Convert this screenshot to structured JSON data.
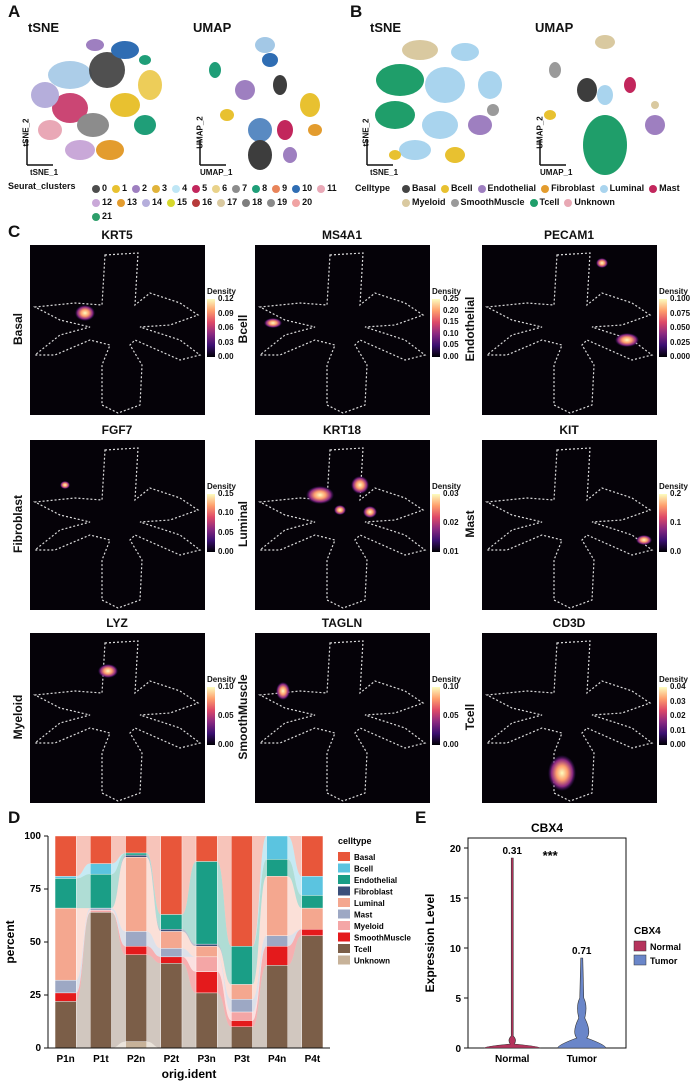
{
  "panels": {
    "A": "A",
    "B": "B",
    "C": "C",
    "D": "D",
    "E": "E"
  },
  "panelA": {
    "tsne_title": "tSNE",
    "umap_title": "UMAP",
    "tsne_x": "tSNE_1",
    "tsne_y": "tSNE_2",
    "umap_x": "UMAP_1",
    "umap_y": "UMAP_2",
    "legend_title": "Seurat_clusters",
    "clusters": [
      {
        "label": "0",
        "color": "#4d4d4d"
      },
      {
        "label": "1",
        "color": "#e8c130"
      },
      {
        "label": "2",
        "color": "#9e7fc0"
      },
      {
        "label": "3",
        "color": "#e0b33a"
      },
      {
        "label": "4",
        "color": "#bfe6f5"
      },
      {
        "label": "5",
        "color": "#c2265c"
      },
      {
        "label": "6",
        "color": "#e9d28a"
      },
      {
        "label": "7",
        "color": "#8c8c8c"
      },
      {
        "label": "8",
        "color": "#1f9e78"
      },
      {
        "label": "9",
        "color": "#e8845a"
      },
      {
        "label": "10",
        "color": "#2f6db3"
      },
      {
        "label": "11",
        "color": "#e9a8b6"
      },
      {
        "label": "12",
        "color": "#c9a8d8"
      },
      {
        "label": "13",
        "color": "#e39c2e"
      },
      {
        "label": "14",
        "color": "#b5aedb"
      },
      {
        "label": "15",
        "color": "#d6d82c"
      },
      {
        "label": "16",
        "color": "#b63a3a"
      },
      {
        "label": "17",
        "color": "#d9c9a0"
      },
      {
        "label": "18",
        "color": "#7d7d7d"
      },
      {
        "label": "19",
        "color": "#8a8a8a"
      },
      {
        "label": "20",
        "color": "#f0a3a3"
      },
      {
        "label": "21",
        "color": "#2d9e6a"
      }
    ]
  },
  "panelB": {
    "tsne_title": "tSNE",
    "umap_title": "UMAP",
    "tsne_x": "tSNE_1",
    "tsne_y": "tSNE_2",
    "umap_x": "UMAP_1",
    "umap_y": "UMAP_2",
    "legend_title": "Celltype",
    "celltypes": [
      {
        "label": "Basal",
        "color": "#444444"
      },
      {
        "label": "Bcell",
        "color": "#e8c130"
      },
      {
        "label": "Endothelial",
        "color": "#9e7fc0"
      },
      {
        "label": "Fibroblast",
        "color": "#e39c2e"
      },
      {
        "label": "Luminal",
        "color": "#a9d4ee"
      },
      {
        "label": "Mast",
        "color": "#c2265c"
      },
      {
        "label": "Myeloid",
        "color": "#d9c9a0"
      },
      {
        "label": "SmoothMuscle",
        "color": "#9a9a9a"
      },
      {
        "label": "Tcell",
        "color": "#1f9e6a"
      },
      {
        "label": "Unknown",
        "color": "#e8a8b4"
      }
    ]
  },
  "panelC": {
    "density_label": "Density",
    "plots": [
      {
        "gene": "KRT5",
        "celltype": "Basal",
        "ticks": [
          "0.12",
          "0.09",
          "0.06",
          "0.03",
          "0.00"
        ]
      },
      {
        "gene": "MS4A1",
        "celltype": "Bcell",
        "ticks": [
          "0.25",
          "0.20",
          "0.15",
          "0.10",
          "0.05",
          "0.00"
        ]
      },
      {
        "gene": "PECAM1",
        "celltype": "Endothelial",
        "ticks": [
          "0.100",
          "0.075",
          "0.050",
          "0.025",
          "0.000"
        ]
      },
      {
        "gene": "FGF7",
        "celltype": "Fibroblast",
        "ticks": [
          "0.15",
          "0.10",
          "0.05",
          "0.00"
        ]
      },
      {
        "gene": "KRT18",
        "celltype": "Luminal",
        "ticks": [
          "0.03",
          "0.02",
          "0.01"
        ]
      },
      {
        "gene": "KIT",
        "celltype": "Mast",
        "ticks": [
          "0.2",
          "0.1",
          "0.0"
        ]
      },
      {
        "gene": "LYZ",
        "celltype": "Myeloid",
        "ticks": [
          "0.10",
          "0.05",
          "0.00"
        ]
      },
      {
        "gene": "TAGLN",
        "celltype": "SmoothMuscle",
        "ticks": [
          "0.10",
          "0.05",
          "0.00"
        ]
      },
      {
        "gene": "CD3D",
        "celltype": "Tcell",
        "ticks": [
          "0.04",
          "0.03",
          "0.02",
          "0.01",
          "0.00"
        ]
      }
    ]
  },
  "chart_data": [
    {
      "type": "bar",
      "stacked": true,
      "xlabel": "orig.ident",
      "ylabel": "percent",
      "ylim": [
        0,
        100
      ],
      "yticks": [
        "0",
        "25",
        "50",
        "75",
        "100"
      ],
      "legend_title": "celltype",
      "categories": [
        "P1n",
        "P1t",
        "P2n",
        "P2t",
        "P3n",
        "P3t",
        "P4n",
        "P4t"
      ],
      "series": [
        {
          "name": "Unknown",
          "color": "#c7b299",
          "values": [
            0,
            0,
            3,
            0,
            0,
            0,
            0,
            0
          ]
        },
        {
          "name": "Tcell",
          "color": "#7b5e48",
          "values": [
            22,
            64,
            41,
            40,
            26,
            10,
            39,
            53
          ]
        },
        {
          "name": "SmoothMuscle",
          "color": "#e41a1c",
          "values": [
            4,
            0,
            4,
            3,
            10,
            3,
            9,
            3
          ]
        },
        {
          "name": "Myeloid",
          "color": "#f4a6a6",
          "values": [
            0,
            1,
            0,
            0,
            7,
            4,
            0,
            0
          ]
        },
        {
          "name": "Mast",
          "color": "#9da8c4",
          "values": [
            6,
            1,
            7,
            4,
            0,
            6,
            5,
            0
          ]
        },
        {
          "name": "Luminal",
          "color": "#f4a78f",
          "values": [
            34,
            0,
            35,
            8,
            5,
            7,
            28,
            10
          ]
        },
        {
          "name": "Fibroblast",
          "color": "#3b4f7a",
          "values": [
            0,
            0,
            1,
            1,
            1,
            0,
            0,
            0
          ]
        },
        {
          "name": "Endothelial",
          "color": "#1a9e86",
          "values": [
            14,
            16,
            1,
            7,
            39,
            18,
            8,
            6
          ]
        },
        {
          "name": "Bcell",
          "color": "#5bc4e0",
          "values": [
            1,
            5,
            0,
            0,
            0,
            0,
            11,
            9
          ]
        },
        {
          "name": "Basal",
          "color": "#e8563a",
          "values": [
            19,
            13,
            8,
            37,
            12,
            52,
            0,
            19
          ]
        }
      ]
    },
    {
      "type": "violin",
      "title": "CBX4",
      "ylabel": "Expression Level",
      "ylim": [
        0,
        21
      ],
      "yticks": [
        "0",
        "5",
        "10",
        "15",
        "20"
      ],
      "categories": [
        "Normal",
        "Tumor"
      ],
      "series": [
        {
          "name": "Normal",
          "color": "#b5335c",
          "annotation": "0.31",
          "max": 19
        },
        {
          "name": "Tumor",
          "color": "#6a86c9",
          "annotation": "0.71",
          "max": 9
        }
      ],
      "significance": "***",
      "legend_title": "CBX4"
    }
  ]
}
